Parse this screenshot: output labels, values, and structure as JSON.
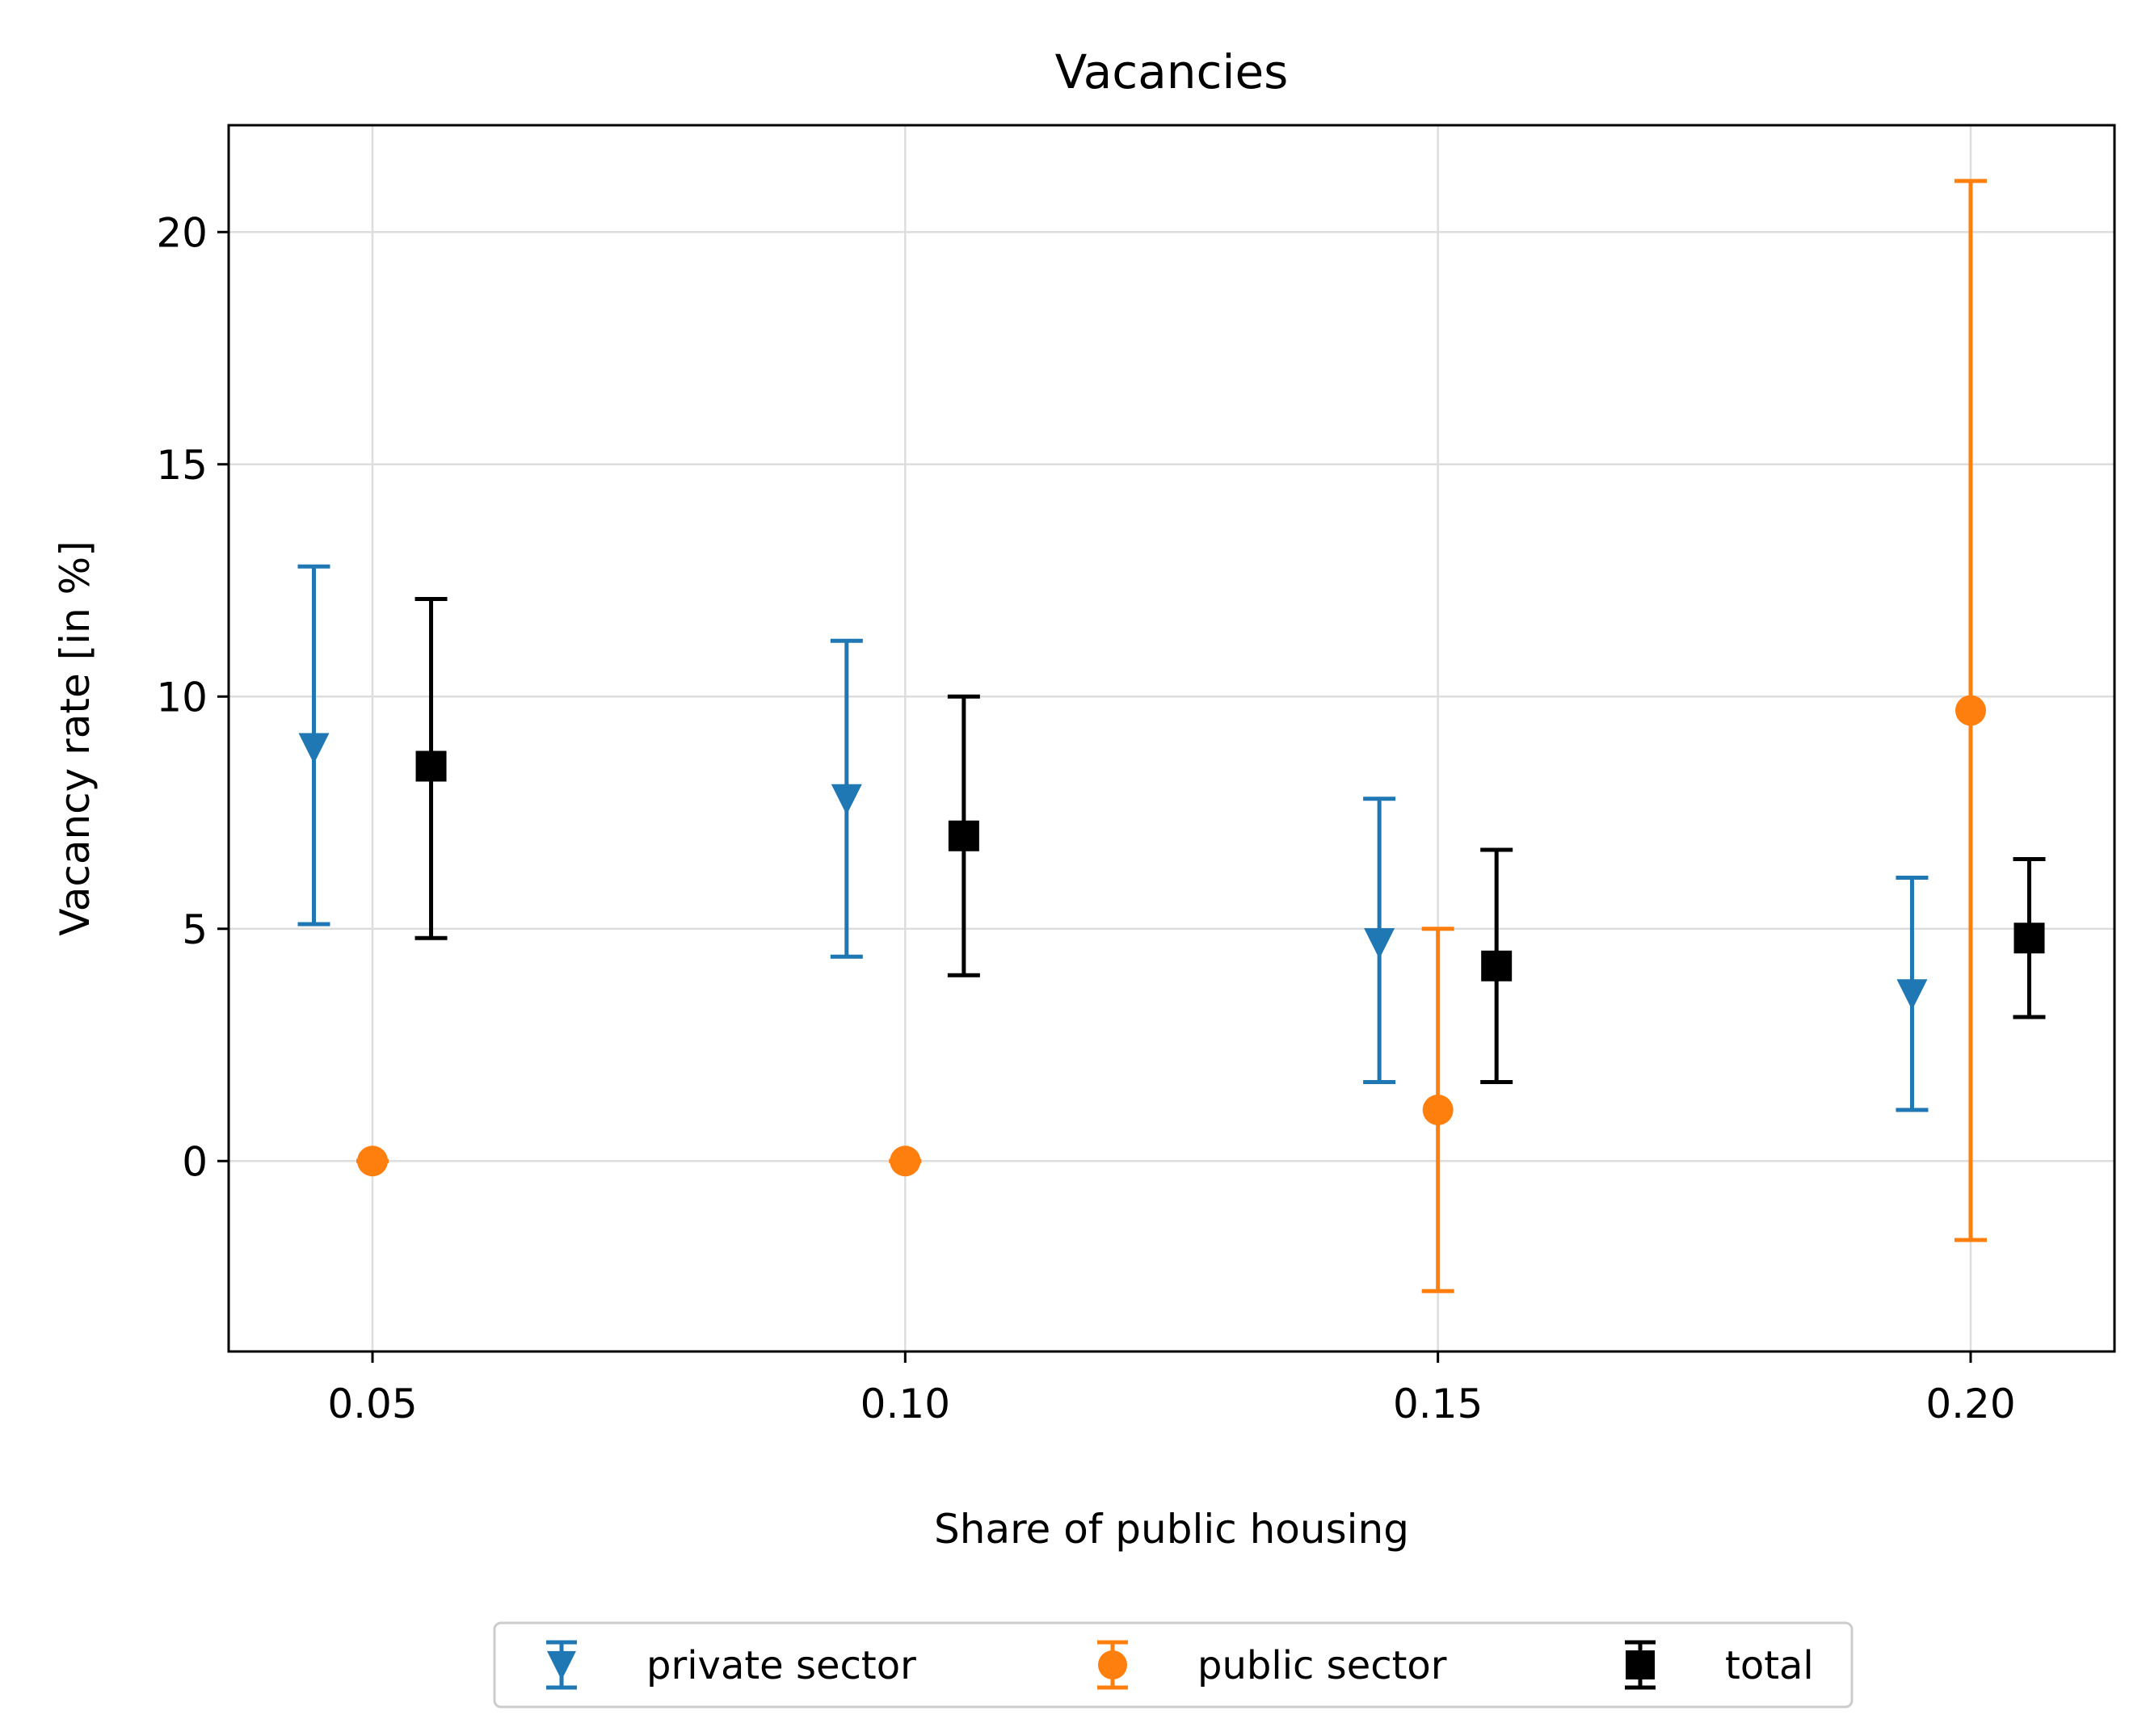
{
  "chart_data": {
    "type": "scatter",
    "title": "Vacancies",
    "xlabel": "Share of public housing",
    "ylabel": "Vacancy rate [in %]",
    "xlim": [
      0.0365,
      0.2135
    ],
    "ylim": [
      -4.1,
      22.3
    ],
    "xticks": [
      0.05,
      0.1,
      0.15,
      0.2
    ],
    "xtick_labels": [
      "0.05",
      "0.10",
      "0.15",
      "0.20"
    ],
    "yticks": [
      0,
      5,
      10,
      15,
      20
    ],
    "ytick_labels": [
      "0",
      "5",
      "10",
      "15",
      "20"
    ],
    "grid": true,
    "legend": {
      "placement": "bottom-center, below axes",
      "columns": 3
    },
    "series": [
      {
        "name": "private sector",
        "color": "#1f77b4",
        "marker": "triangle-down",
        "offset": -0.0055,
        "x": [
          0.05,
          0.1,
          0.15,
          0.2
        ],
        "y": [
          8.9,
          7.8,
          4.7,
          3.6
        ],
        "err_low": [
          5.1,
          4.4,
          1.7,
          1.1
        ],
        "err_high": [
          12.8,
          11.2,
          7.8,
          6.1
        ]
      },
      {
        "name": "public sector",
        "color": "#ff7f0e",
        "marker": "circle",
        "offset": 0.0,
        "x": [
          0.05,
          0.1,
          0.15,
          0.2
        ],
        "y": [
          0.0,
          0.0,
          1.1,
          9.7
        ],
        "err_low": [
          0.0,
          0.0,
          -2.8,
          -1.7
        ],
        "err_high": [
          0.0,
          0.0,
          5.0,
          21.1
        ]
      },
      {
        "name": "total",
        "color": "#000000",
        "marker": "square",
        "offset": 0.0055,
        "x": [
          0.05,
          0.1,
          0.15,
          0.2
        ],
        "y": [
          8.5,
          7.0,
          4.2,
          4.8
        ],
        "err_low": [
          4.8,
          4.0,
          1.7,
          3.1
        ],
        "err_high": [
          12.1,
          10.0,
          6.7,
          6.5
        ]
      }
    ]
  }
}
